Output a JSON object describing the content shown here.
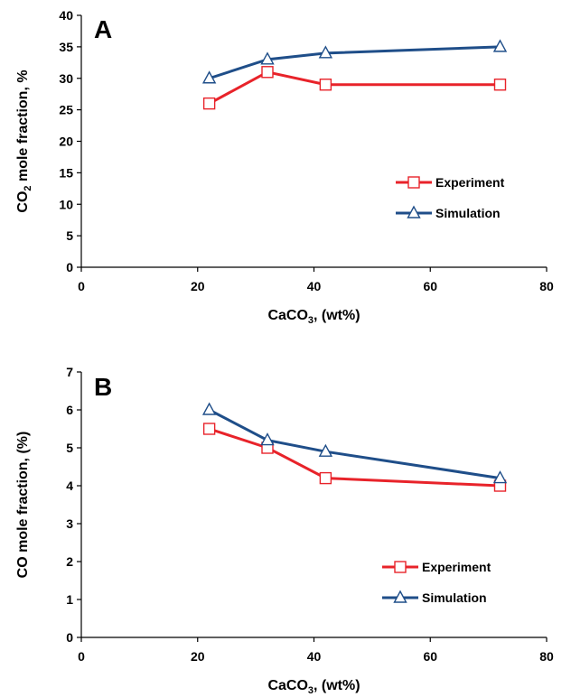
{
  "colors": {
    "experiment": "#e8232a",
    "simulation": "#1f4e89"
  },
  "chart_data": [
    {
      "type": "line",
      "panel_label": "A",
      "ylabel": {
        "pre": "CO",
        "sub": "2",
        "post": " mole fraction,  %"
      },
      "xlabel": {
        "pre": "CaCO",
        "sub": "3",
        "post": ", (wt%)"
      },
      "xlim": [
        0,
        80
      ],
      "ylim": [
        0,
        40
      ],
      "xticks": [
        0,
        20,
        40,
        60,
        80
      ],
      "yticks": [
        0,
        5,
        10,
        15,
        20,
        25,
        30,
        35,
        40
      ],
      "series": [
        {
          "name": "Experiment",
          "marker": "square",
          "x": [
            22,
            32,
            42,
            72
          ],
          "y": [
            26,
            31,
            29,
            29
          ]
        },
        {
          "name": "Simulation",
          "marker": "triangle",
          "x": [
            22,
            32,
            42,
            72
          ],
          "y": [
            30,
            33,
            34,
            35
          ]
        }
      ],
      "legend_position": "right"
    },
    {
      "type": "line",
      "panel_label": "B",
      "ylabel": {
        "pre": "CO mole fraction, (%)",
        "sub": "",
        "post": ""
      },
      "xlabel": {
        "pre": "CaCO",
        "sub": "3",
        "post": ", (wt%)"
      },
      "xlim": [
        0,
        80
      ],
      "ylim": [
        0,
        7
      ],
      "xticks": [
        0,
        20,
        40,
        60,
        80
      ],
      "yticks": [
        0,
        1,
        2,
        3,
        4,
        5,
        6,
        7
      ],
      "series": [
        {
          "name": "Experiment",
          "marker": "square",
          "x": [
            22,
            32,
            42,
            72
          ],
          "y": [
            5.5,
            5.0,
            4.2,
            4.0
          ]
        },
        {
          "name": "Simulation",
          "marker": "triangle",
          "x": [
            22,
            32,
            42,
            72
          ],
          "y": [
            6.0,
            5.2,
            4.9,
            4.2
          ]
        }
      ],
      "legend_position": "bottom-right"
    }
  ]
}
